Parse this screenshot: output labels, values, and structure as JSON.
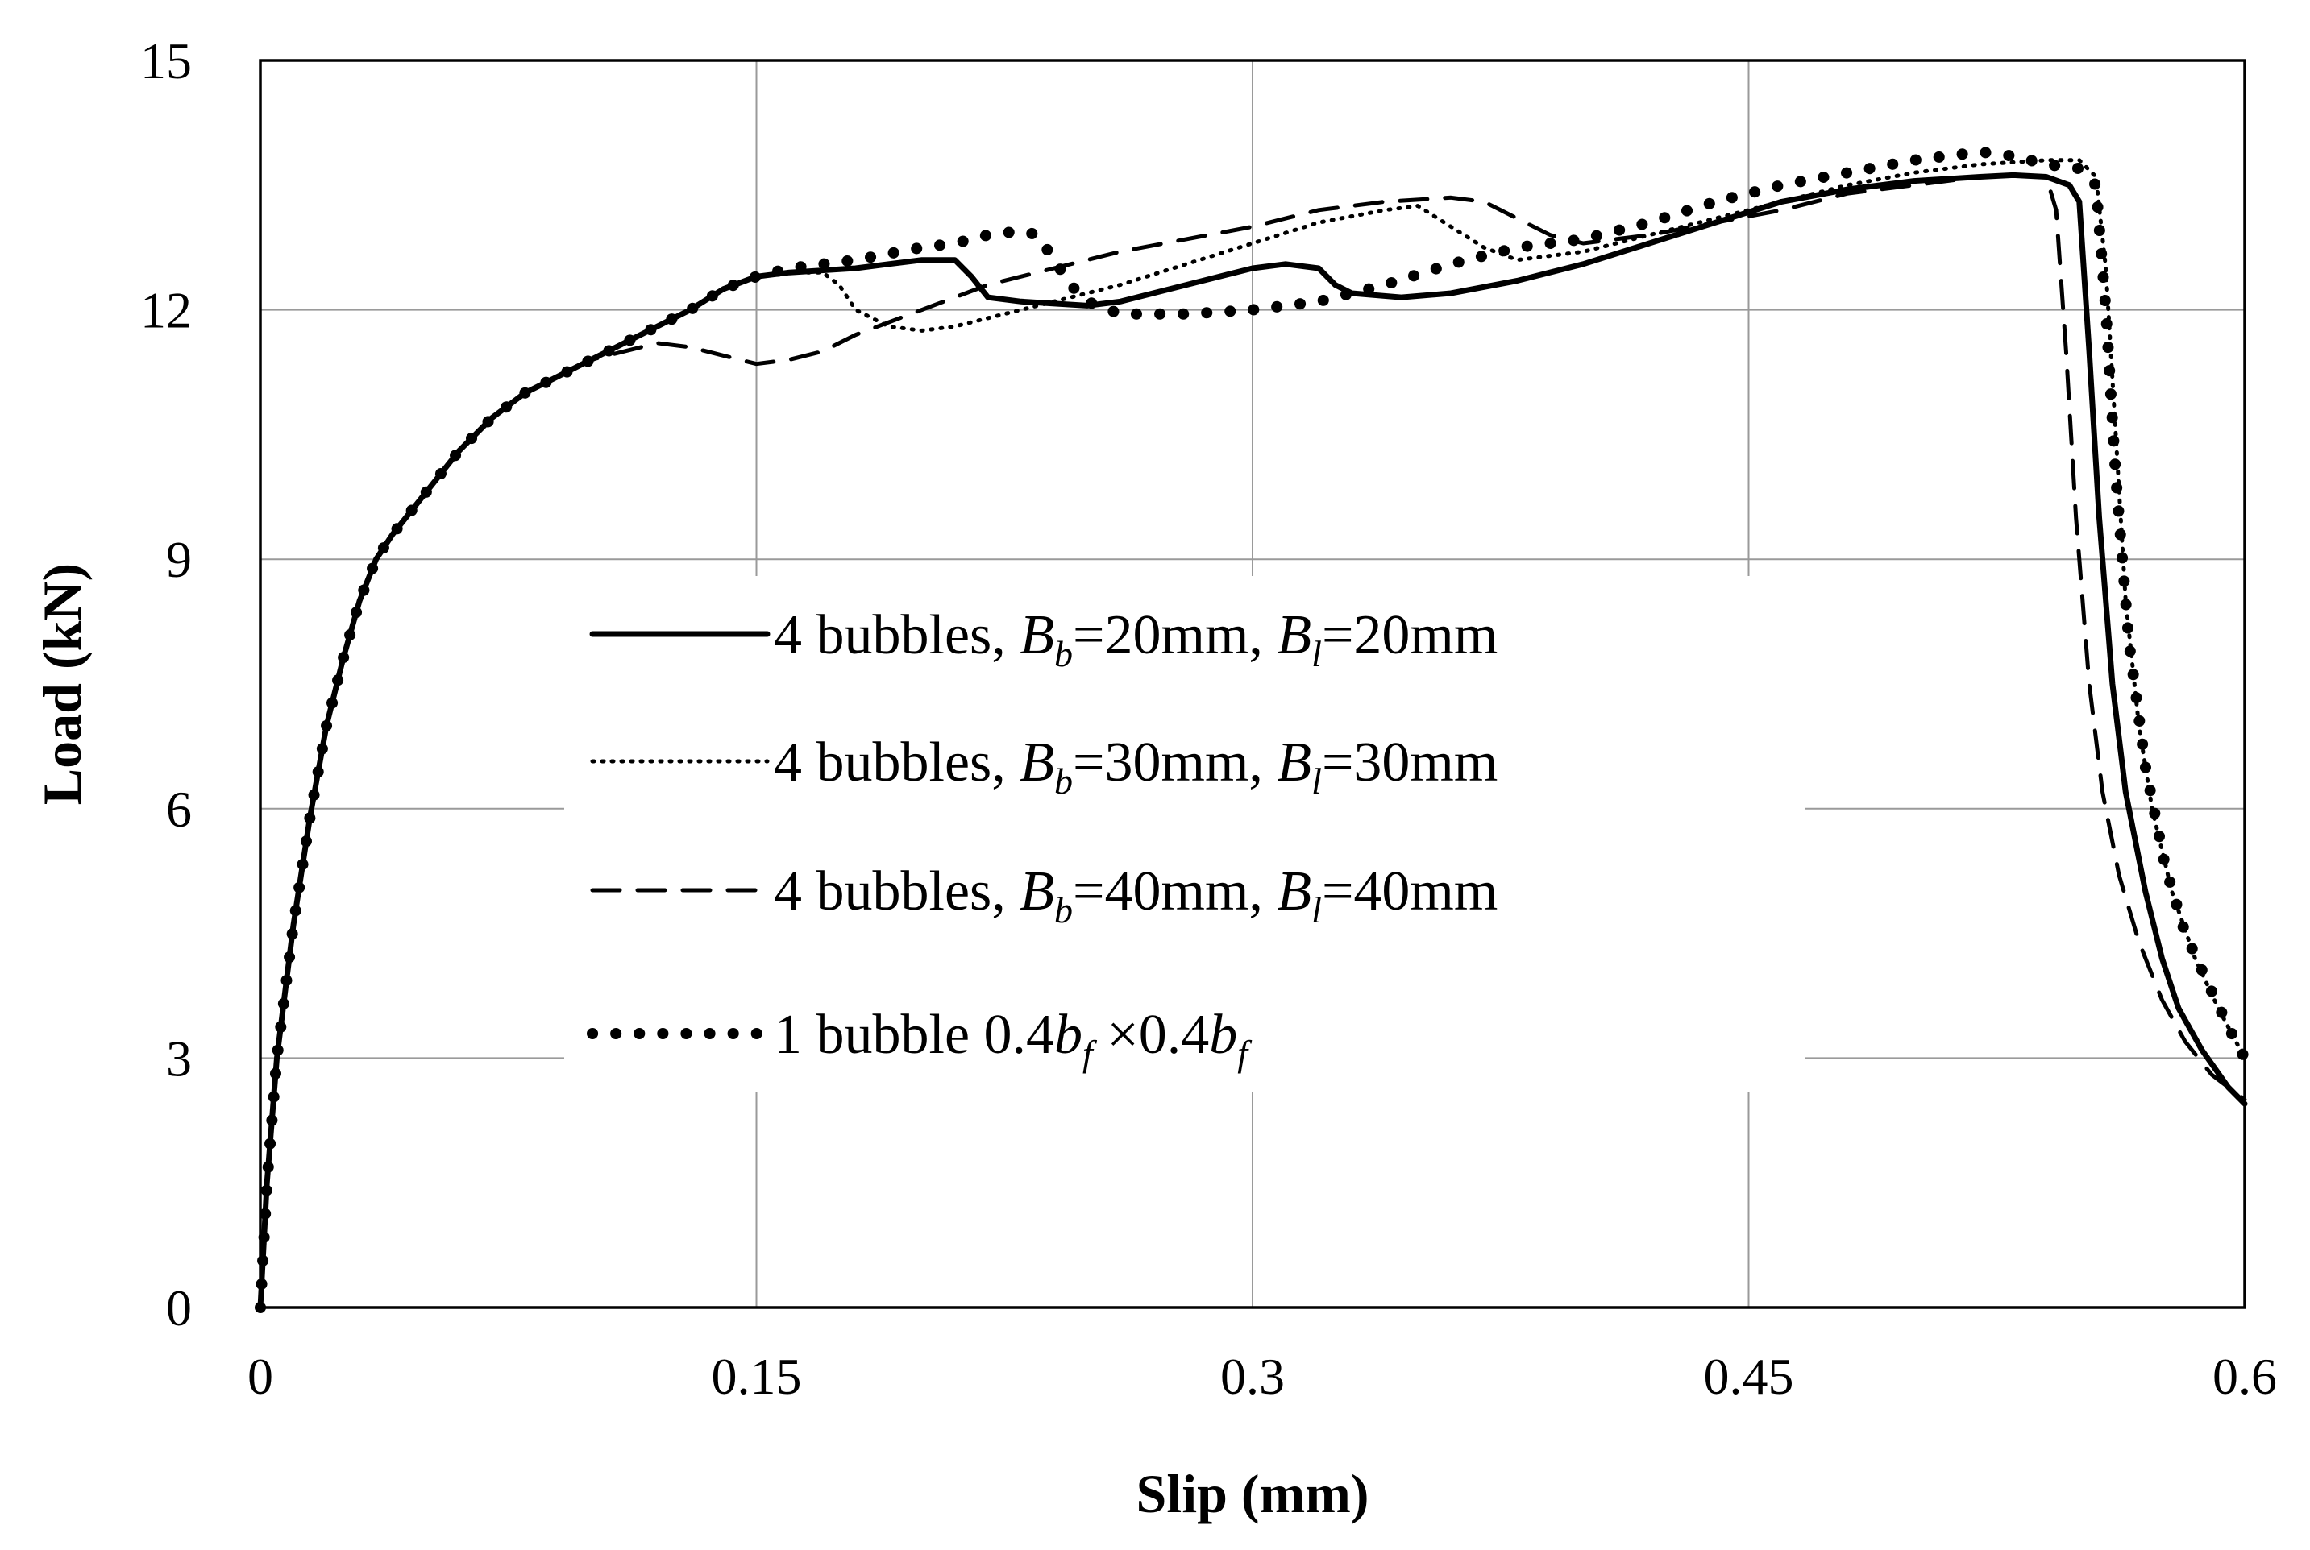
{
  "chart_data": {
    "type": "line",
    "title": "",
    "xlabel": "Slip (mm)",
    "ylabel": "Load (kN)",
    "xlim": [
      0,
      0.6
    ],
    "ylim": [
      0,
      15
    ],
    "grid": true,
    "legend_position": "center-left",
    "x_ticks": [
      {
        "value": 0,
        "label": "0"
      },
      {
        "value": 0.15,
        "label": "0.15"
      },
      {
        "value": 0.3,
        "label": "0.3"
      },
      {
        "value": 0.45,
        "label": "0.45"
      },
      {
        "value": 0.6,
        "label": "0.6"
      }
    ],
    "y_ticks": [
      {
        "value": 0,
        "label": "0"
      },
      {
        "value": 3,
        "label": "3"
      },
      {
        "value": 6,
        "label": "6"
      },
      {
        "value": 9,
        "label": "9"
      },
      {
        "value": 12,
        "label": "12"
      },
      {
        "value": 15,
        "label": "15"
      }
    ],
    "series": [
      {
        "name": "4 bubbles, Bb=20mm, Bl=20mm",
        "style": "solid",
        "legend_parts": [
          {
            "text": "4 bubbles, "
          },
          {
            "text": "B",
            "italic": true
          },
          {
            "text": "b",
            "italic": true,
            "sub": true
          },
          {
            "text": "=20mm, "
          },
          {
            "text": "B",
            "italic": true
          },
          {
            "text": "l",
            "italic": true,
            "sub": true
          },
          {
            "text": "=20mm"
          }
        ],
        "points": [
          [
            0,
            0
          ],
          [
            0.002,
            1.5
          ],
          [
            0.005,
            3.0
          ],
          [
            0.01,
            4.6
          ],
          [
            0.015,
            5.9
          ],
          [
            0.02,
            7.0
          ],
          [
            0.025,
            7.8
          ],
          [
            0.03,
            8.5
          ],
          [
            0.035,
            9.0
          ],
          [
            0.04,
            9.3
          ],
          [
            0.05,
            9.8
          ],
          [
            0.06,
            10.3
          ],
          [
            0.07,
            10.7
          ],
          [
            0.08,
            11.0
          ],
          [
            0.09,
            11.2
          ],
          [
            0.1,
            11.4
          ],
          [
            0.11,
            11.6
          ],
          [
            0.12,
            11.8
          ],
          [
            0.13,
            12.0
          ],
          [
            0.14,
            12.25
          ],
          [
            0.15,
            12.4
          ],
          [
            0.16,
            12.45
          ],
          [
            0.18,
            12.5
          ],
          [
            0.19,
            12.55
          ],
          [
            0.2,
            12.6
          ],
          [
            0.21,
            12.6
          ],
          [
            0.215,
            12.4
          ],
          [
            0.22,
            12.15
          ],
          [
            0.23,
            12.1
          ],
          [
            0.25,
            12.05
          ],
          [
            0.26,
            12.1
          ],
          [
            0.28,
            12.3
          ],
          [
            0.3,
            12.5
          ],
          [
            0.31,
            12.55
          ],
          [
            0.32,
            12.5
          ],
          [
            0.325,
            12.3
          ],
          [
            0.33,
            12.2
          ],
          [
            0.345,
            12.15
          ],
          [
            0.36,
            12.2
          ],
          [
            0.38,
            12.35
          ],
          [
            0.4,
            12.55
          ],
          [
            0.42,
            12.8
          ],
          [
            0.44,
            13.05
          ],
          [
            0.46,
            13.3
          ],
          [
            0.48,
            13.45
          ],
          [
            0.5,
            13.55
          ],
          [
            0.52,
            13.6
          ],
          [
            0.53,
            13.62
          ],
          [
            0.54,
            13.6
          ],
          [
            0.547,
            13.5
          ],
          [
            0.55,
            13.3
          ],
          [
            0.553,
            11.5
          ],
          [
            0.556,
            9.5
          ],
          [
            0.56,
            7.5
          ],
          [
            0.564,
            6.2
          ],
          [
            0.57,
            5.0
          ],
          [
            0.575,
            4.2
          ],
          [
            0.58,
            3.6
          ],
          [
            0.587,
            3.1
          ],
          [
            0.595,
            2.65
          ],
          [
            0.6,
            2.45
          ]
        ]
      },
      {
        "name": "4 bubbles, Bb=30mm, Bl=30mm",
        "style": "dotted",
        "legend_parts": [
          {
            "text": "4 bubbles, "
          },
          {
            "text": "B",
            "italic": true
          },
          {
            "text": "b",
            "italic": true,
            "sub": true
          },
          {
            "text": "=30mm, "
          },
          {
            "text": "B",
            "italic": true
          },
          {
            "text": "l",
            "italic": true,
            "sub": true
          },
          {
            "text": "=30mm"
          }
        ],
        "points": [
          [
            0,
            0
          ],
          [
            0.002,
            1.5
          ],
          [
            0.005,
            3.0
          ],
          [
            0.01,
            4.6
          ],
          [
            0.015,
            5.9
          ],
          [
            0.02,
            7.0
          ],
          [
            0.025,
            7.8
          ],
          [
            0.03,
            8.5
          ],
          [
            0.035,
            9.0
          ],
          [
            0.04,
            9.3
          ],
          [
            0.05,
            9.8
          ],
          [
            0.06,
            10.3
          ],
          [
            0.07,
            10.7
          ],
          [
            0.08,
            11.0
          ],
          [
            0.09,
            11.2
          ],
          [
            0.1,
            11.4
          ],
          [
            0.11,
            11.6
          ],
          [
            0.12,
            11.8
          ],
          [
            0.13,
            12.0
          ],
          [
            0.14,
            12.25
          ],
          [
            0.15,
            12.4
          ],
          [
            0.16,
            12.45
          ],
          [
            0.17,
            12.45
          ],
          [
            0.175,
            12.3
          ],
          [
            0.18,
            12.0
          ],
          [
            0.19,
            11.8
          ],
          [
            0.2,
            11.75
          ],
          [
            0.21,
            11.8
          ],
          [
            0.22,
            11.9
          ],
          [
            0.24,
            12.1
          ],
          [
            0.26,
            12.3
          ],
          [
            0.28,
            12.55
          ],
          [
            0.3,
            12.8
          ],
          [
            0.32,
            13.05
          ],
          [
            0.34,
            13.2
          ],
          [
            0.35,
            13.25
          ],
          [
            0.36,
            13.0
          ],
          [
            0.37,
            12.75
          ],
          [
            0.38,
            12.6
          ],
          [
            0.4,
            12.7
          ],
          [
            0.42,
            12.9
          ],
          [
            0.44,
            13.1
          ],
          [
            0.46,
            13.3
          ],
          [
            0.48,
            13.5
          ],
          [
            0.5,
            13.65
          ],
          [
            0.52,
            13.75
          ],
          [
            0.54,
            13.8
          ],
          [
            0.55,
            13.8
          ],
          [
            0.555,
            13.6
          ],
          [
            0.558,
            12.5
          ],
          [
            0.561,
            10.5
          ],
          [
            0.564,
            8.5
          ],
          [
            0.568,
            7.0
          ],
          [
            0.572,
            6.0
          ],
          [
            0.578,
            5.0
          ],
          [
            0.585,
            4.2
          ],
          [
            0.592,
            3.6
          ],
          [
            0.6,
            3.0
          ]
        ]
      },
      {
        "name": "4 bubbles, Bb=40mm, Bl=40mm",
        "style": "dashed",
        "legend_parts": [
          {
            "text": "4 bubbles, "
          },
          {
            "text": "B",
            "italic": true
          },
          {
            "text": "b",
            "italic": true,
            "sub": true
          },
          {
            "text": "=40mm, "
          },
          {
            "text": "B",
            "italic": true
          },
          {
            "text": "l",
            "italic": true,
            "sub": true
          },
          {
            "text": "=40mm"
          }
        ],
        "points": [
          [
            0,
            0
          ],
          [
            0.002,
            1.5
          ],
          [
            0.005,
            3.0
          ],
          [
            0.01,
            4.6
          ],
          [
            0.015,
            5.9
          ],
          [
            0.02,
            7.0
          ],
          [
            0.025,
            7.8
          ],
          [
            0.03,
            8.5
          ],
          [
            0.035,
            9.0
          ],
          [
            0.04,
            9.3
          ],
          [
            0.05,
            9.8
          ],
          [
            0.06,
            10.3
          ],
          [
            0.07,
            10.7
          ],
          [
            0.08,
            11.0
          ],
          [
            0.09,
            11.2
          ],
          [
            0.1,
            11.4
          ],
          [
            0.11,
            11.5
          ],
          [
            0.12,
            11.6
          ],
          [
            0.13,
            11.55
          ],
          [
            0.14,
            11.45
          ],
          [
            0.15,
            11.35
          ],
          [
            0.16,
            11.4
          ],
          [
            0.17,
            11.5
          ],
          [
            0.18,
            11.7
          ],
          [
            0.2,
            12.0
          ],
          [
            0.22,
            12.3
          ],
          [
            0.24,
            12.5
          ],
          [
            0.26,
            12.7
          ],
          [
            0.28,
            12.85
          ],
          [
            0.3,
            13.0
          ],
          [
            0.32,
            13.2
          ],
          [
            0.34,
            13.3
          ],
          [
            0.36,
            13.35
          ],
          [
            0.37,
            13.3
          ],
          [
            0.38,
            13.1
          ],
          [
            0.39,
            12.9
          ],
          [
            0.4,
            12.8
          ],
          [
            0.42,
            12.9
          ],
          [
            0.44,
            13.05
          ],
          [
            0.46,
            13.2
          ],
          [
            0.48,
            13.4
          ],
          [
            0.5,
            13.5
          ],
          [
            0.52,
            13.6
          ],
          [
            0.53,
            13.62
          ],
          [
            0.54,
            13.6
          ],
          [
            0.543,
            13.2
          ],
          [
            0.546,
            11.5
          ],
          [
            0.549,
            9.5
          ],
          [
            0.553,
            7.5
          ],
          [
            0.557,
            6.2
          ],
          [
            0.562,
            5.2
          ],
          [
            0.568,
            4.4
          ],
          [
            0.575,
            3.7
          ],
          [
            0.582,
            3.2
          ],
          [
            0.59,
            2.8
          ],
          [
            0.6,
            2.5
          ]
        ]
      },
      {
        "name": "1 bubble 0.4bf×0.4bf",
        "style": "dots",
        "legend_parts": [
          {
            "text": "1 bubble 0.4"
          },
          {
            "text": "b",
            "italic": true
          },
          {
            "text": "f",
            "italic": true,
            "sub": true
          },
          {
            "text": " ×0.4"
          },
          {
            "text": "b",
            "italic": true
          },
          {
            "text": "f",
            "italic": true,
            "sub": true
          }
        ],
        "points": [
          [
            0,
            0
          ],
          [
            0.002,
            1.5
          ],
          [
            0.005,
            3.0
          ],
          [
            0.01,
            4.6
          ],
          [
            0.015,
            5.9
          ],
          [
            0.02,
            7.0
          ],
          [
            0.025,
            7.8
          ],
          [
            0.03,
            8.5
          ],
          [
            0.035,
            9.0
          ],
          [
            0.04,
            9.3
          ],
          [
            0.05,
            9.8
          ],
          [
            0.06,
            10.3
          ],
          [
            0.07,
            10.7
          ],
          [
            0.08,
            11.0
          ],
          [
            0.09,
            11.2
          ],
          [
            0.1,
            11.4
          ],
          [
            0.11,
            11.6
          ],
          [
            0.12,
            11.8
          ],
          [
            0.13,
            12.0
          ],
          [
            0.14,
            12.25
          ],
          [
            0.15,
            12.4
          ],
          [
            0.16,
            12.5
          ],
          [
            0.18,
            12.6
          ],
          [
            0.2,
            12.75
          ],
          [
            0.21,
            12.8
          ],
          [
            0.22,
            12.9
          ],
          [
            0.23,
            12.95
          ],
          [
            0.235,
            12.9
          ],
          [
            0.24,
            12.6
          ],
          [
            0.245,
            12.3
          ],
          [
            0.25,
            12.1
          ],
          [
            0.26,
            11.95
          ],
          [
            0.28,
            11.95
          ],
          [
            0.3,
            12.0
          ],
          [
            0.32,
            12.1
          ],
          [
            0.34,
            12.3
          ],
          [
            0.36,
            12.55
          ],
          [
            0.38,
            12.75
          ],
          [
            0.4,
            12.85
          ],
          [
            0.42,
            13.05
          ],
          [
            0.44,
            13.3
          ],
          [
            0.46,
            13.5
          ],
          [
            0.48,
            13.65
          ],
          [
            0.5,
            13.8
          ],
          [
            0.52,
            13.9
          ],
          [
            0.53,
            13.85
          ],
          [
            0.54,
            13.75
          ],
          [
            0.55,
            13.7
          ],
          [
            0.555,
            13.5
          ],
          [
            0.558,
            12.0
          ],
          [
            0.561,
            10.0
          ],
          [
            0.565,
            8.0
          ],
          [
            0.57,
            6.5
          ],
          [
            0.576,
            5.3
          ],
          [
            0.582,
            4.5
          ],
          [
            0.59,
            3.8
          ],
          [
            0.596,
            3.3
          ],
          [
            0.6,
            3.0
          ]
        ]
      }
    ]
  }
}
